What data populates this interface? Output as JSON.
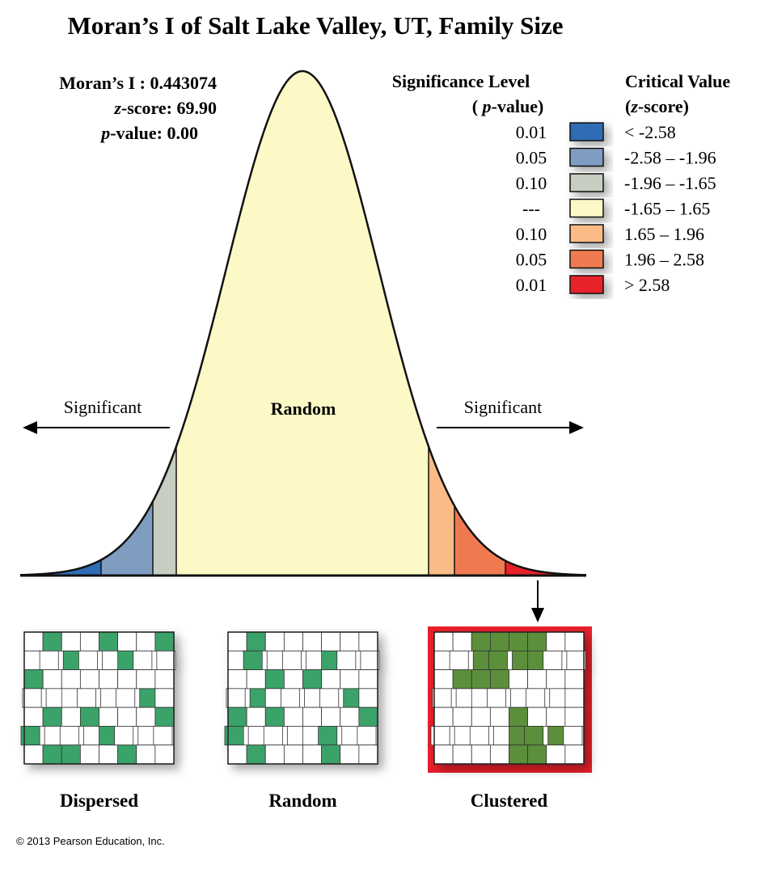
{
  "title": "Moran’s I of Salt Lake Valley, UT, Family Size",
  "statistics": {
    "morans_i": {
      "label": "Moran’s I :",
      "value": "0.443074"
    },
    "z_score": {
      "symbol": "z",
      "label": "-score:",
      "value": "69.90"
    },
    "p_value": {
      "symbol": "p",
      "label": "-value:",
      "value": "0.00"
    }
  },
  "legend": {
    "significance_header": {
      "line1": "Significance Level",
      "open": "( ",
      "symbol": "p",
      "close": "-value)"
    },
    "critical_header": {
      "line1": "Critical Value",
      "open": "(",
      "symbol": "z",
      "close": "-score)"
    },
    "rows": [
      {
        "p_value": "0.01",
        "color": "#2f6db5",
        "range": "< -2.58"
      },
      {
        "p_value": "0.05",
        "color": "#7f9dc1",
        "range": "-2.58 – -1.96"
      },
      {
        "p_value": "0.10",
        "color": "#c5cec0",
        "range": "-1.96 – -1.65"
      },
      {
        "p_value": "---",
        "color": "#fdf9c6",
        "range": "-1.65 – 1.65"
      },
      {
        "p_value": "0.10",
        "color": "#fbbb86",
        "range": "1.65 – 1.96"
      },
      {
        "p_value": "0.05",
        "color": "#f07a50",
        "range": "1.96 – 2.58"
      },
      {
        "p_value": "0.01",
        "color": "#e8202a",
        "range": "> 2.58"
      }
    ]
  },
  "curve": {
    "left_label": "Significant",
    "center_label": "Random",
    "right_label": "Significant"
  },
  "maps": [
    {
      "label": "Dispersed"
    },
    {
      "label": "Random"
    },
    {
      "label": "Clustered"
    }
  ],
  "copyright": "© 2013 Pearson Education, Inc."
}
